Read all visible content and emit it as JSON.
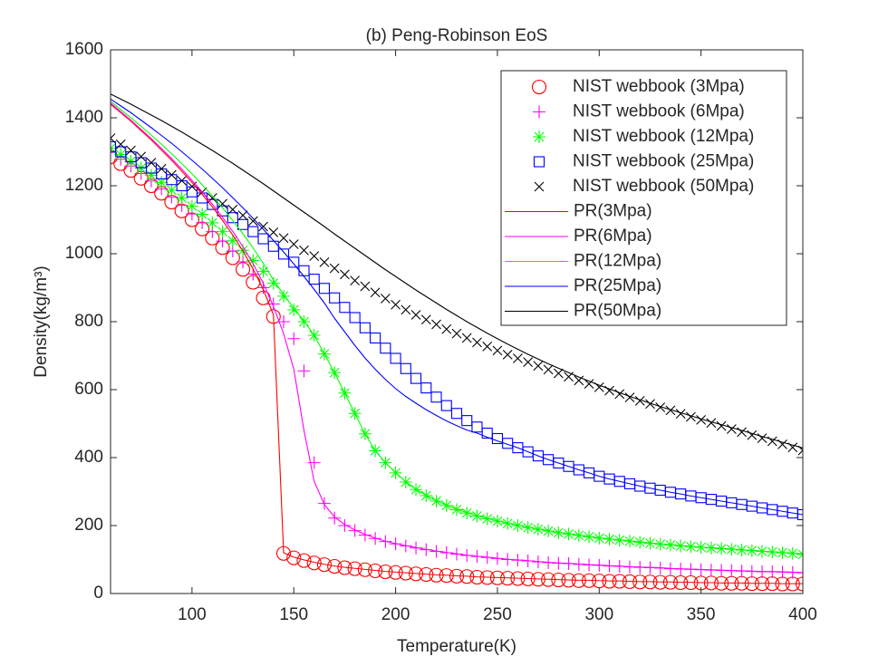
{
  "chart_data": {
    "type": "line",
    "title": "(b) Peng-Robinson EoS",
    "x_label": "Temperature(K)",
    "y_label": "Density(kg/m³)",
    "xlim": [
      60,
      400
    ],
    "xticks": [
      100,
      150,
      200,
      250,
      300,
      350,
      400
    ],
    "ylim": [
      0,
      1600
    ],
    "yticks": [
      0,
      200,
      400,
      600,
      800,
      1000,
      1200,
      1400,
      1600
    ],
    "grid": false,
    "legend": "upper right",
    "x": [
      60,
      65,
      70,
      75,
      80,
      85,
      90,
      95,
      100,
      105,
      110,
      115,
      120,
      125,
      130,
      135,
      140,
      145,
      150,
      155,
      160,
      165,
      170,
      175,
      180,
      185,
      190,
      195,
      200,
      205,
      210,
      215,
      220,
      225,
      230,
      235,
      240,
      245,
      250,
      255,
      260,
      265,
      270,
      275,
      280,
      285,
      290,
      295,
      300,
      305,
      310,
      315,
      320,
      325,
      330,
      335,
      340,
      345,
      350,
      355,
      360,
      365,
      370,
      375,
      380,
      385,
      390,
      395,
      400
    ],
    "series": [
      {
        "name": "NIST webbook (3Mpa)",
        "color": "#ff0000",
        "marker": "o",
        "values": [
          1285,
          1265,
          1245,
          1222,
          1200,
          1178,
          1152,
          1126,
          1100,
          1073,
          1046,
          1018,
          988,
          954,
          916,
          870,
          815,
          118,
          105,
          97,
          90,
          85,
          80,
          76,
          73,
          70,
          67,
          64,
          62,
          60,
          58,
          56,
          54,
          53,
          51,
          50,
          48,
          47,
          46,
          45,
          44,
          43,
          42,
          41,
          40,
          39,
          38,
          38,
          37,
          36,
          36,
          35,
          34,
          34,
          33,
          33,
          32,
          32,
          31,
          31,
          30,
          30,
          30,
          29,
          29,
          29,
          28,
          28,
          28
        ]
      },
      {
        "name": "NIST webbook (6Mpa)",
        "color": "#ff00ff",
        "marker": "+",
        "values": [
          1298,
          1278,
          1258,
          1236,
          1214,
          1191,
          1167,
          1142,
          1117,
          1091,
          1065,
          1037,
          1008,
          976,
          940,
          900,
          852,
          800,
          750,
          655,
          385,
          265,
          222,
          200,
          185,
          172,
          162,
          153,
          146,
          140,
          134,
          129,
          124,
          120,
          116,
          112,
          109,
          106,
          103,
          100,
          98,
          96,
          93,
          91,
          89,
          88,
          86,
          84,
          83,
          81,
          80,
          78,
          77,
          76,
          75,
          73,
          72,
          71,
          70,
          69,
          68,
          67,
          66,
          65,
          64,
          64,
          63,
          62,
          61
        ]
      },
      {
        "name": "NIST webbook (12Mpa)",
        "color": "#00ff00",
        "marker": "*",
        "values": [
          1310,
          1292,
          1272,
          1252,
          1231,
          1210,
          1187,
          1164,
          1140,
          1116,
          1091,
          1065,
          1038,
          1010,
          980,
          948,
          913,
          875,
          835,
          800,
          760,
          705,
          650,
          590,
          530,
          470,
          420,
          385,
          355,
          328,
          306,
          288,
          272,
          259,
          247,
          237,
          228,
          220,
          213,
          206,
          200,
          194,
          189,
          184,
          179,
          175,
          171,
          167,
          163,
          160,
          157,
          154,
          151,
          148,
          145,
          143,
          140,
          138,
          136,
          134,
          132,
          130,
          128,
          126,
          124,
          122,
          120,
          118,
          115
        ]
      },
      {
        "name": "NIST webbook (25Mpa)",
        "color": "#0000ff",
        "marker": "s",
        "values": [
          1315,
          1300,
          1285,
          1268,
          1252,
          1235,
          1218,
          1200,
          1182,
          1164,
          1145,
          1126,
          1106,
          1086,
          1065,
          1044,
          1022,
          999,
          975,
          950,
          925,
          898,
          870,
          842,
          812,
          782,
          752,
          722,
          692,
          662,
          633,
          605,
          578,
          553,
          530,
          509,
          490,
          472,
          456,
          442,
          429,
          417,
          405,
          394,
          384,
          374,
          364,
          355,
          345,
          337,
          330,
          323,
          316,
          310,
          304,
          298,
          293,
          287,
          282,
          277,
          272,
          267,
          262,
          257,
          252,
          247,
          242,
          237,
          232
        ]
      },
      {
        "name": "NIST webbook (50Mpa)",
        "color": "#000000",
        "marker": "x",
        "values": [
          1340,
          1322,
          1304,
          1286,
          1268,
          1250,
          1232,
          1215,
          1198,
          1181,
          1164,
          1147,
          1130,
          1113,
          1096,
          1080,
          1063,
          1046,
          1028,
          1010,
          993,
          975,
          957,
          939,
          921,
          904,
          886,
          868,
          850,
          835,
          820,
          806,
          792,
          778,
          765,
          752,
          739,
          727,
          715,
          703,
          692,
          681,
          670,
          659,
          648,
          638,
          627,
          617,
          607,
          597,
          587,
          577,
          567,
          558,
          548,
          539,
          529,
          520,
          511,
          502,
          493,
          484,
          475,
          466,
          457,
          448,
          439,
          430,
          421
        ]
      },
      {
        "name": "PR(3Mpa)",
        "color": "#ff0000",
        "marker": "none",
        "values": [
          1440,
          1415,
          1390,
          1362,
          1335,
          1305,
          1275,
          1243,
          1210,
          1175,
          1138,
          1098,
          1055,
          1008,
          955,
          895,
          820,
          120,
          107,
          99,
          92,
          86,
          81,
          77,
          74,
          71,
          68,
          65,
          63,
          61,
          59,
          57,
          55,
          54,
          52,
          51,
          49,
          48,
          47,
          46,
          45,
          44,
          43,
          42,
          41,
          40,
          39,
          39,
          38,
          37,
          37,
          36,
          35,
          35,
          34,
          34,
          33,
          33,
          32,
          32,
          31,
          31,
          31,
          30,
          30,
          30,
          29,
          29,
          29
        ]
      },
      {
        "name": "PR(6Mpa)",
        "color": "#ff00ff",
        "marker": "none",
        "values": [
          1443,
          1418,
          1393,
          1366,
          1339,
          1310,
          1280,
          1249,
          1216,
          1182,
          1146,
          1107,
          1066,
          1021,
          971,
          913,
          845,
          765,
          660,
          480,
          330,
          262,
          225,
          203,
          187,
          174,
          163,
          154,
          147,
          141,
          135,
          130,
          125,
          121,
          117,
          113,
          110,
          107,
          104,
          101,
          99,
          97,
          94,
          92,
          90,
          89,
          87,
          85,
          84,
          82,
          81,
          79,
          78,
          77,
          76,
          74,
          73,
          72,
          71,
          70,
          69,
          68,
          67,
          66,
          65,
          65,
          64,
          63,
          62
        ]
      },
      {
        "name": "PR(12Mpa)",
        "color": "#00ff00",
        "marker": "none",
        "values": [
          1448,
          1424,
          1400,
          1375,
          1349,
          1322,
          1294,
          1265,
          1235,
          1203,
          1170,
          1135,
          1098,
          1059,
          1017,
          972,
          922,
          880,
          840,
          802,
          760,
          705,
          650,
          590,
          530,
          470,
          420,
          385,
          356,
          329,
          307,
          289,
          273,
          260,
          248,
          238,
          229,
          221,
          214,
          207,
          201,
          195,
          190,
          185,
          180,
          176,
          172,
          168,
          164,
          161,
          158,
          155,
          152,
          149,
          146,
          144,
          141,
          139,
          137,
          135,
          133,
          131,
          129,
          127,
          125,
          123,
          121,
          119,
          117
        ]
      },
      {
        "name": "PR(25Mpa)",
        "color": "#0000ff",
        "marker": "none",
        "values": [
          1455,
          1435,
          1415,
          1393,
          1371,
          1348,
          1325,
          1300,
          1275,
          1249,
          1222,
          1194,
          1165,
          1135,
          1104,
          1072,
          1039,
          1005,
          970,
          933,
          895,
          855,
          810,
          770,
          730,
          693,
          660,
          630,
          603,
          580,
          560,
          541,
          524,
          508,
          494,
          481,
          472,
          460,
          449,
          439,
          429,
          417,
          405,
          394,
          384,
          374,
          364,
          355,
          345,
          337,
          330,
          323,
          316,
          310,
          304,
          298,
          293,
          287,
          282,
          277,
          272,
          267,
          262,
          257,
          252,
          247,
          242,
          237,
          232
        ]
      },
      {
        "name": "PR(50Mpa)",
        "color": "#000000",
        "marker": "none",
        "values": [
          1470,
          1455,
          1440,
          1424,
          1408,
          1392,
          1375,
          1358,
          1340,
          1322,
          1304,
          1285,
          1266,
          1246,
          1226,
          1206,
          1185,
          1164,
          1143,
          1122,
          1101,
          1080,
          1058,
          1037,
          1016,
          995,
          974,
          953,
          933,
          913,
          893,
          874,
          855,
          836,
          818,
          800,
          783,
          766,
          750,
          734,
          719,
          704,
          690,
          676,
          663,
          650,
          637,
          625,
          613,
          602,
          591,
          580,
          570,
          560,
          550,
          541,
          532,
          523,
          514,
          505,
          497,
          488,
          480,
          471,
          462,
          454,
          445,
          437,
          428
        ]
      }
    ]
  }
}
